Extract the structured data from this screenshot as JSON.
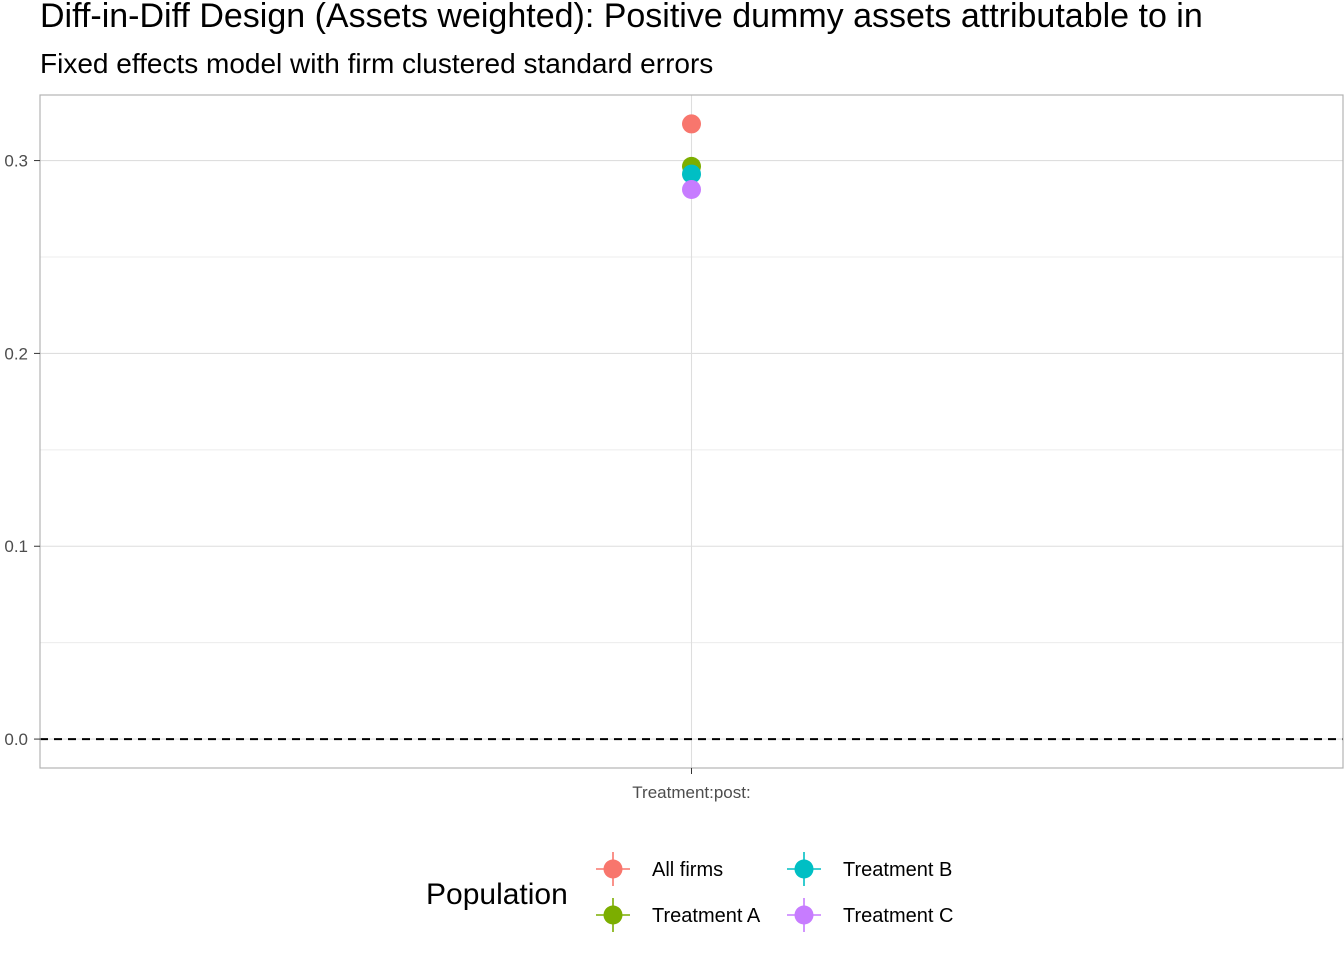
{
  "title": "Diff-in-Diff Design (Assets weighted): Positive dummy assets attributable to in",
  "subtitle": "Fixed effects model with firm clustered standard errors",
  "chart_data": {
    "type": "scatter",
    "title": "Diff-in-Diff Design (Assets weighted): Positive dummy assets attributable to in",
    "subtitle": "Fixed effects model with firm clustered standard errors",
    "xlabel": "",
    "ylabel": "",
    "categories": [
      "Treatment:post:"
    ],
    "ylim": [
      -0.015,
      0.334
    ],
    "y_ticks": [
      0.0,
      0.1,
      0.2,
      0.3
    ],
    "y_tick_labels": [
      "0.0",
      "0.1",
      "0.2",
      "0.3"
    ],
    "reference_line": {
      "y": 0,
      "style": "dashed",
      "color": "#000000"
    },
    "grid": true,
    "legend": {
      "title": "Population",
      "position": "bottom"
    },
    "series": [
      {
        "name": "All firms",
        "color": "#F8766D",
        "values": [
          0.319
        ]
      },
      {
        "name": "Treatment A",
        "color": "#7CAE00",
        "values": [
          0.297
        ]
      },
      {
        "name": "Treatment B",
        "color": "#00BFC4",
        "values": [
          0.293
        ]
      },
      {
        "name": "Treatment C",
        "color": "#C77CFF",
        "values": [
          0.285
        ]
      }
    ]
  }
}
